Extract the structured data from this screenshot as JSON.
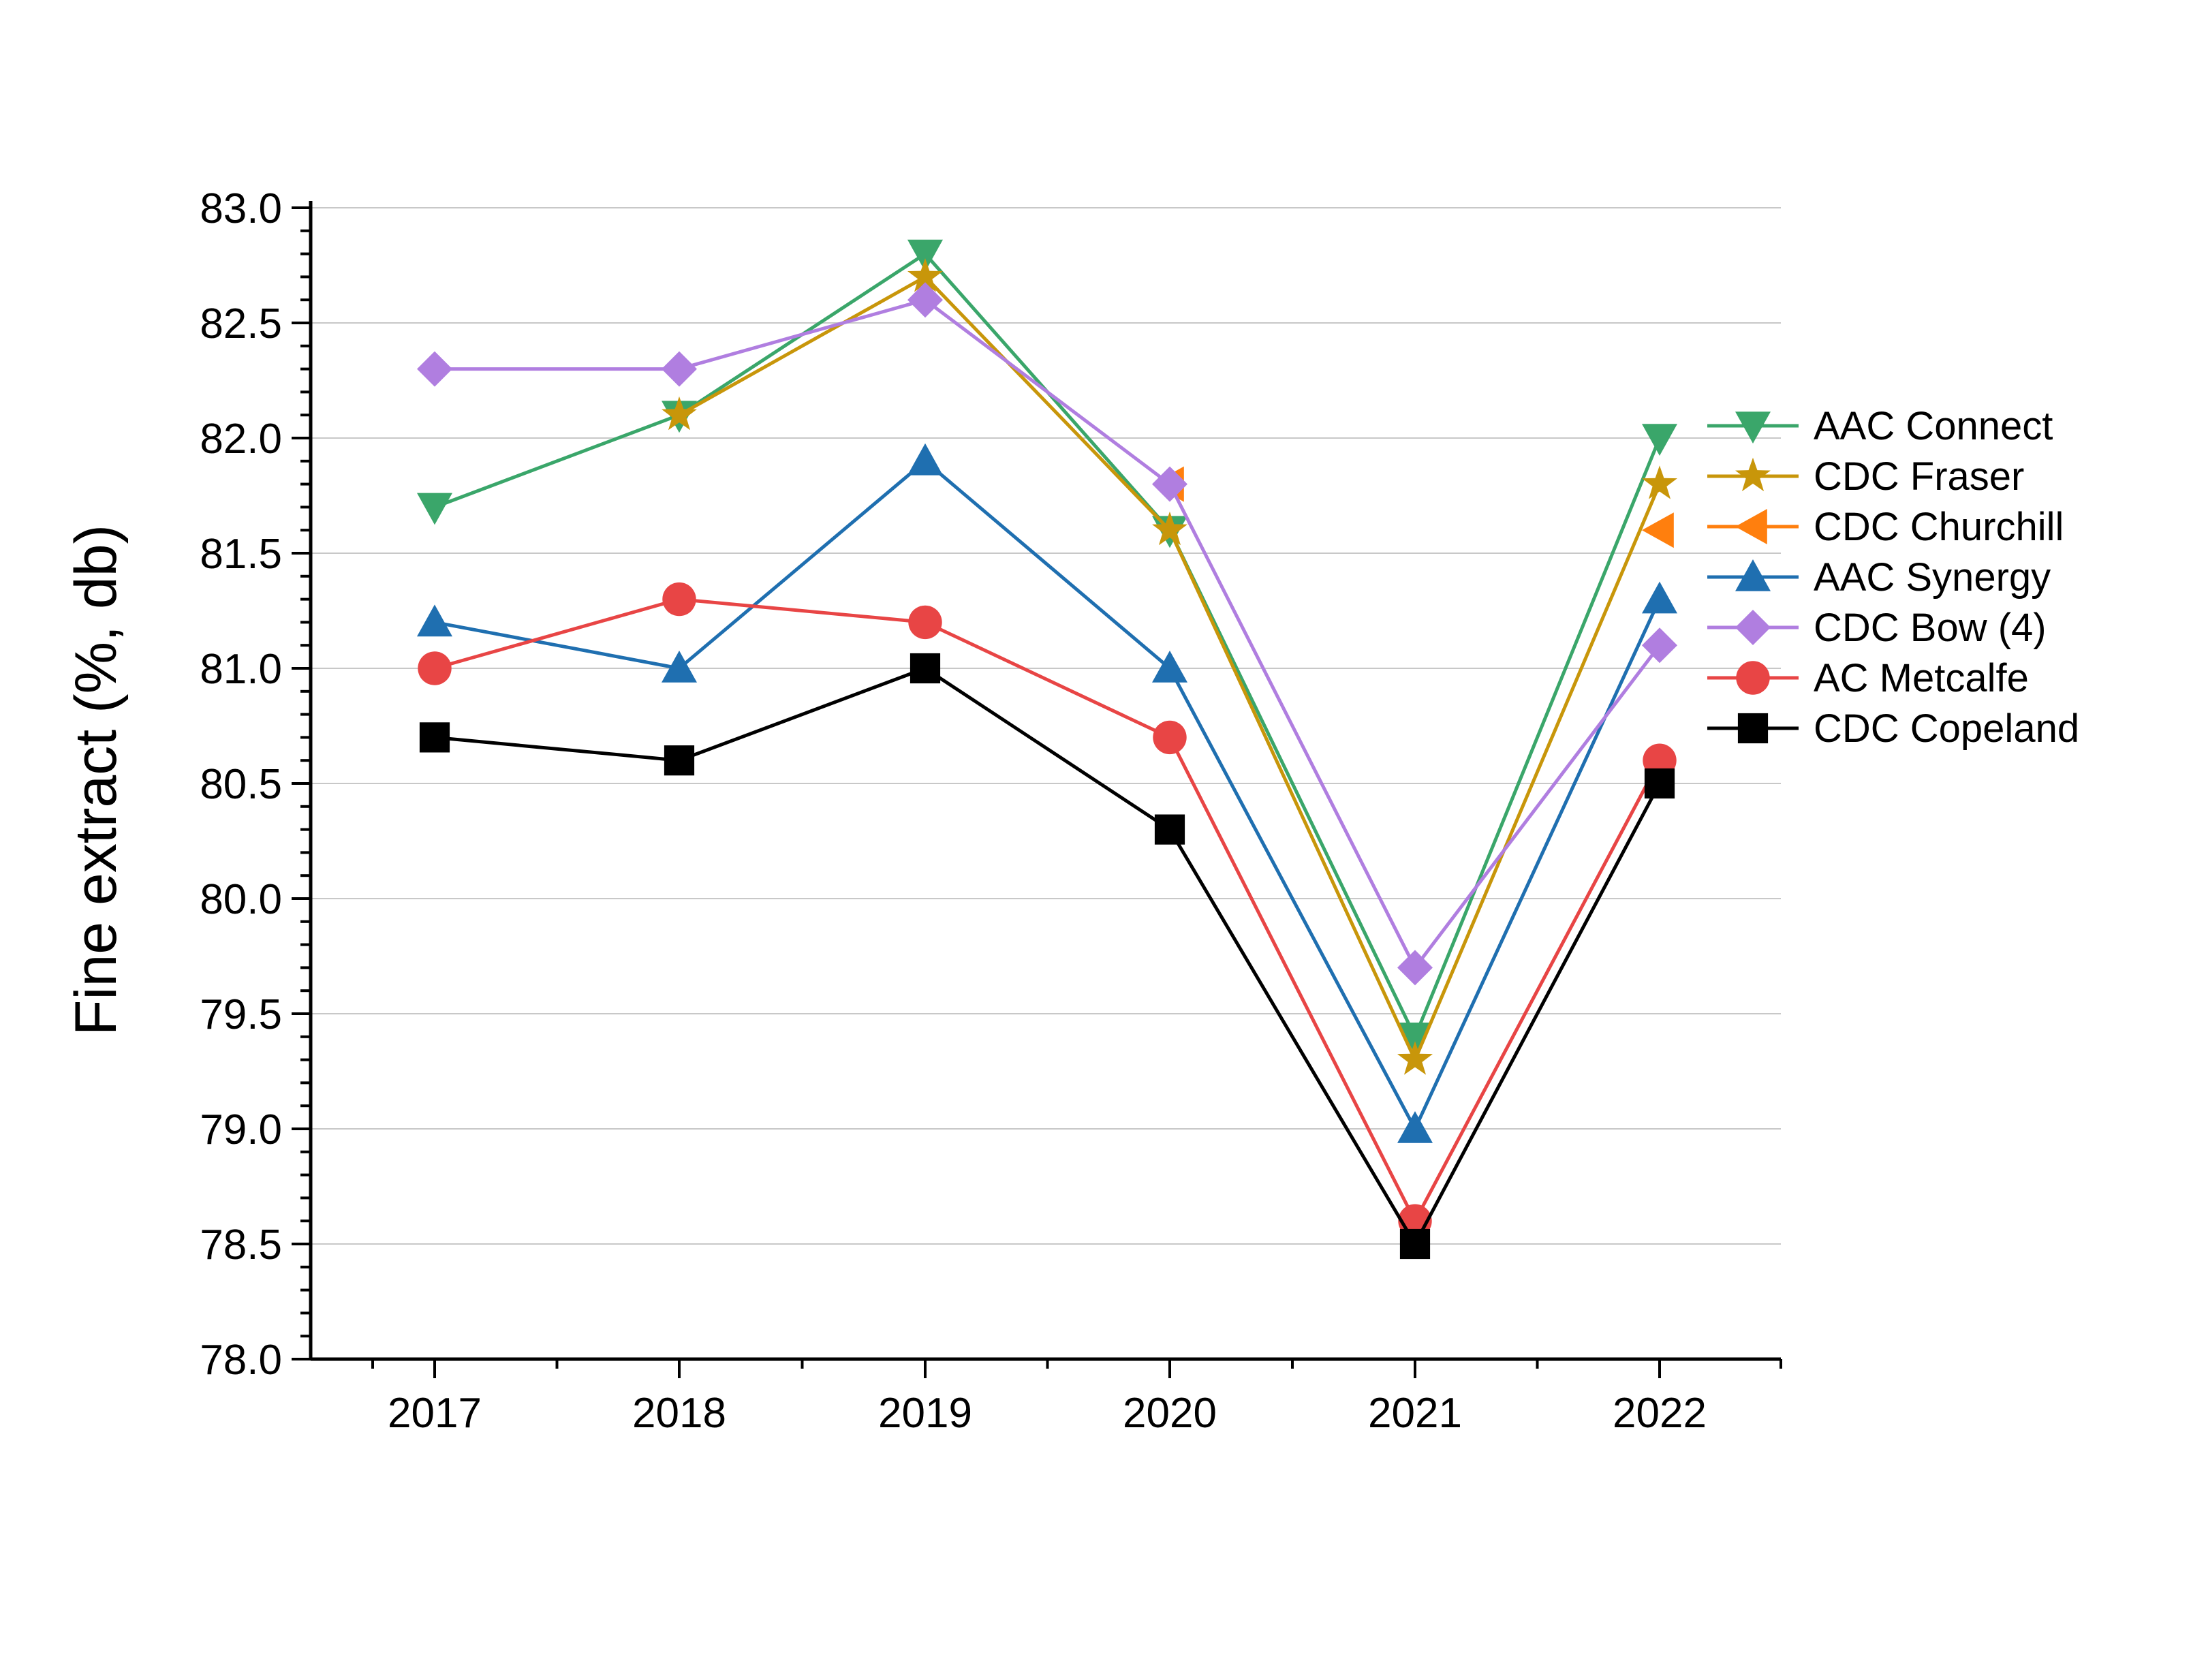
{
  "chart_data": {
    "type": "line",
    "ylabel": "Fine extract (%, db)",
    "xlabel": "",
    "categories": [
      "2017",
      "2018",
      "2019",
      "2020",
      "2021",
      "2022"
    ],
    "ylim": [
      78.0,
      83.0
    ],
    "y_ticks": [
      78.0,
      78.5,
      79.0,
      79.5,
      80.0,
      80.5,
      81.0,
      81.5,
      82.0,
      82.5,
      83.0
    ],
    "y_tick_labels": [
      "78.0",
      "78.5",
      "79.0",
      "79.5",
      "80.0",
      "80.5",
      "81.0",
      "81.5",
      "82.0",
      "82.5",
      "83.0"
    ],
    "grid": "horizontal",
    "legend_position": "right",
    "series": [
      {
        "name": "AAC Connect",
        "color": "#3aa66a",
        "marker": "triangle-down",
        "values": [
          81.7,
          82.1,
          82.8,
          81.6,
          79.4,
          82.0
        ]
      },
      {
        "name": "CDC Fraser",
        "color": "#c8960a",
        "marker": "star",
        "values": [
          null,
          82.1,
          82.7,
          81.6,
          79.3,
          81.8
        ]
      },
      {
        "name": "CDC Churchill",
        "color": "#ff7f0e",
        "marker": "triangle-left",
        "values": [
          null,
          null,
          null,
          81.8,
          null,
          81.6
        ]
      },
      {
        "name": "AAC Synergy",
        "color": "#1f6fb0",
        "marker": "triangle-up",
        "values": [
          81.2,
          81.0,
          81.9,
          81.0,
          79.0,
          81.3
        ]
      },
      {
        "name": "CDC Bow  (4)",
        "color": "#b07ee0",
        "marker": "diamond",
        "values": [
          82.3,
          82.3,
          82.6,
          81.8,
          79.7,
          81.1
        ]
      },
      {
        "name": "AC Metcalfe",
        "color": "#e84545",
        "marker": "circle",
        "values": [
          81.0,
          81.3,
          81.2,
          80.7,
          78.6,
          80.6
        ]
      },
      {
        "name": "CDC Copeland",
        "color": "#000000",
        "marker": "square",
        "values": [
          80.7,
          80.6,
          81.0,
          80.3,
          78.5,
          80.5
        ]
      }
    ]
  }
}
